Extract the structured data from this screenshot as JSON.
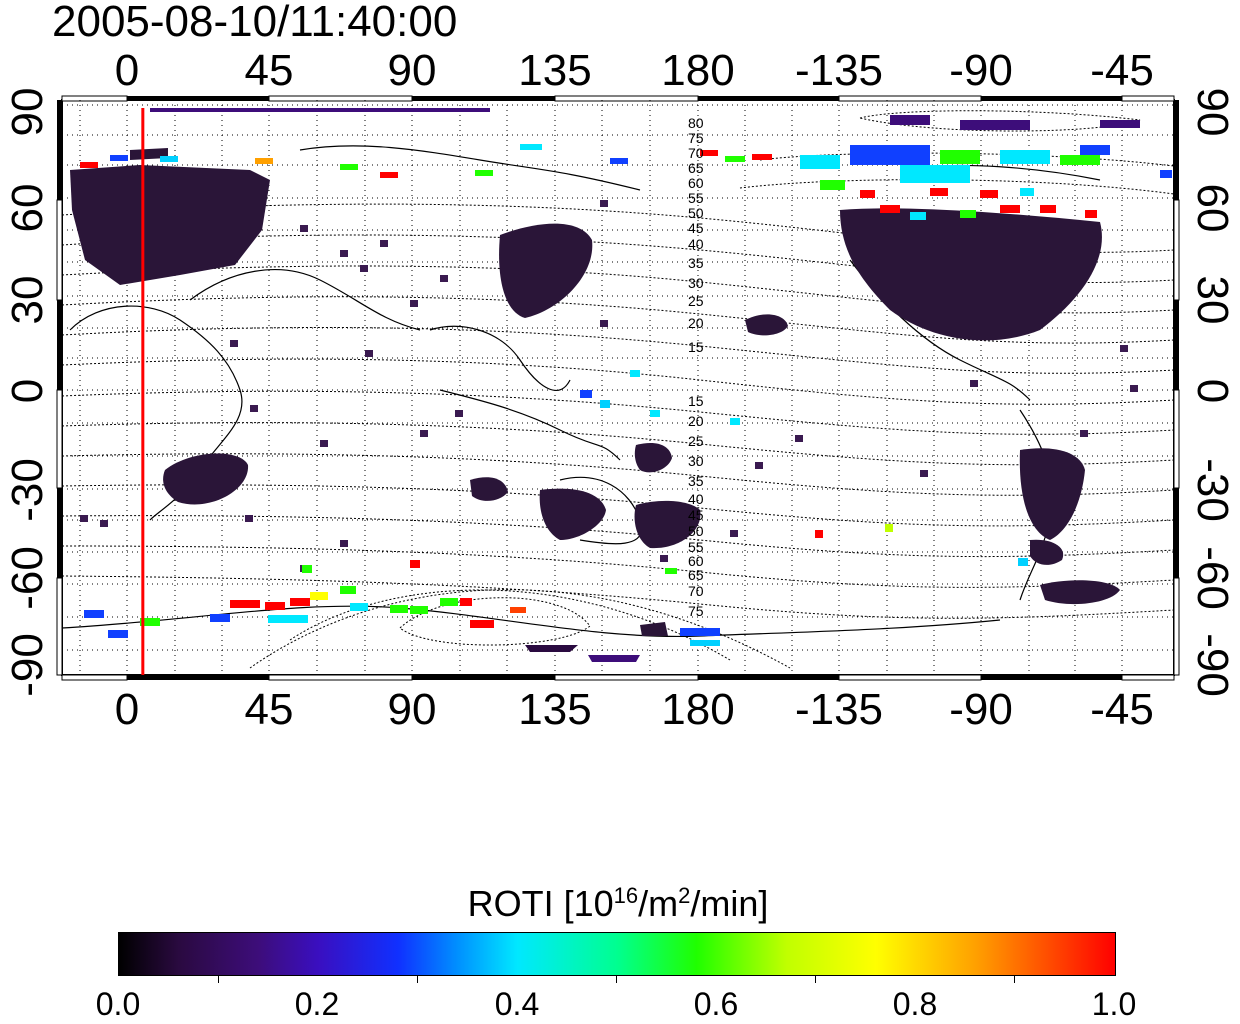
{
  "title": "2005-08-10/11:40:00",
  "map": {
    "lon_ticks": [
      "0",
      "45",
      "90",
      "135",
      "180",
      "-135",
      "-90",
      "-45"
    ],
    "lat_ticks_left": [
      "90",
      "60",
      "30",
      "0",
      "-30",
      "-60",
      "-90"
    ],
    "lat_ticks_right": [
      "90",
      "60",
      "30",
      "0",
      "-30",
      "-60",
      "-90"
    ],
    "contour_labels_north": [
      "80",
      "75",
      "70",
      "65",
      "60",
      "55",
      "50",
      "45",
      "40",
      "35",
      "30",
      "25",
      "20",
      "15"
    ],
    "contour_labels_south": [
      "15",
      "20",
      "25",
      "30",
      "35",
      "40",
      "45",
      "50",
      "55",
      "60",
      "65",
      "70",
      "75"
    ],
    "marker_longitude": 5,
    "colors": {
      "marker": "#ff0000",
      "frame": "#000000",
      "background": "#ffffff"
    }
  },
  "colorbar": {
    "title_main": "ROTI  [10",
    "title_exp1": "16",
    "title_mid": "/m",
    "title_exp2": "2",
    "title_end": "/min]",
    "ticks": [
      "0.0",
      "0.2",
      "0.4",
      "0.6",
      "0.8",
      "1.0"
    ],
    "range": [
      0.0,
      1.0
    ]
  }
}
